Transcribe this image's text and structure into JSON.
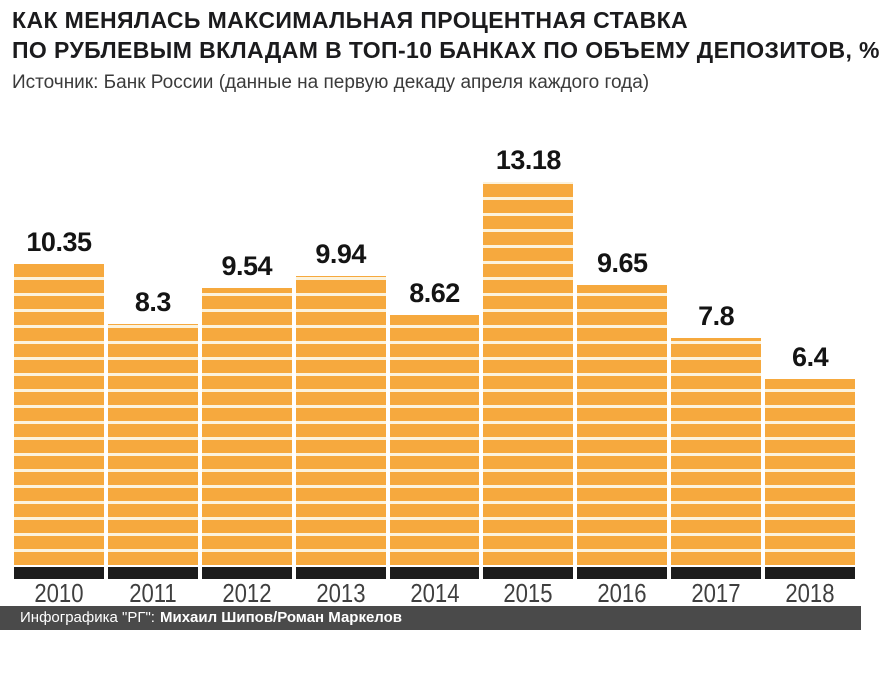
{
  "header": {
    "title_line1": "КАК МЕНЯЛАСЬ МАКСИМАЛЬНАЯ ПРОЦЕНТНАЯ СТАВКА",
    "title_line2": "ПО РУБЛЕВЫМ ВКЛАДАМ В ТОП-10 БАНКАХ ПО ОБЪЕМУ ДЕПОЗИТОВ, %",
    "source": "Источник: Банк России (данные на первую декаду апреля каждого года)"
  },
  "chart_data": {
    "type": "bar",
    "title": "КАК МЕНЯЛАСЬ МАКСИМАЛЬНАЯ ПРОЦЕНТНАЯ СТАВКА ПО РУБЛЕВЫМ ВКЛАДАМ В ТОП-10 БАНКАХ ПО ОБЪЕМУ ДЕПОЗИТОВ, %",
    "categories": [
      "2010",
      "2011",
      "2012",
      "2013",
      "2014",
      "2015",
      "2016",
      "2017",
      "2018"
    ],
    "values": [
      10.35,
      8.3,
      9.54,
      9.94,
      8.62,
      13.18,
      9.65,
      7.8,
      6.4
    ],
    "value_labels": [
      "10.35",
      "8.3",
      "9.54",
      "9.94",
      "8.62",
      "13.18",
      "9.65",
      "7.8",
      "6.4"
    ],
    "xlabel": "",
    "ylabel": "",
    "ylim": [
      0,
      13.18
    ],
    "grid": false,
    "legend": "none",
    "bar_color": "#F6A93E",
    "stripe_color": "#FCF3DD",
    "base_color": "#1C1C1C"
  },
  "footer": {
    "prefix": "Инфографика \"РГ\":",
    "authors": "Михаил Шипов/Роман Маркелов",
    "bg_color": "#4A4A4A"
  }
}
